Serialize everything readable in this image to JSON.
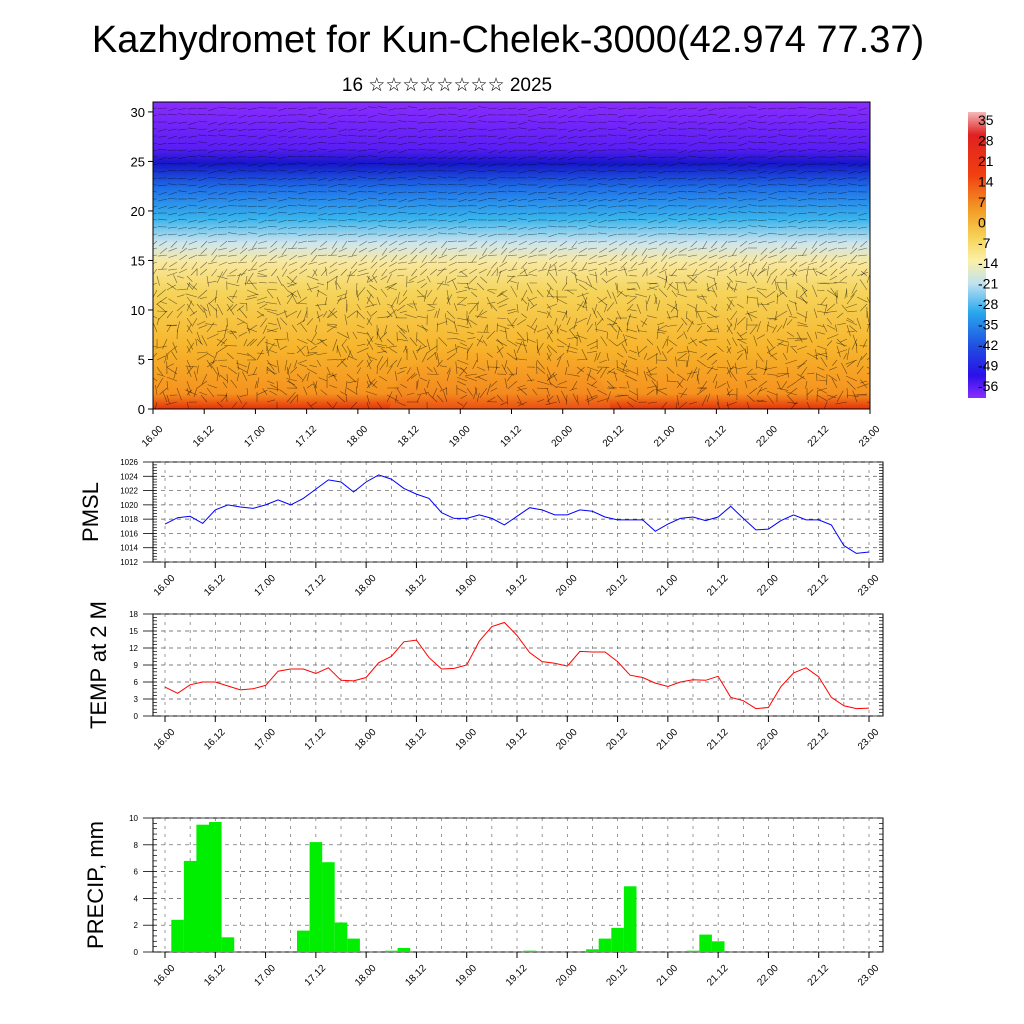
{
  "title": "Kazhydromet for Kun-Chelek-3000(42.974 77.37)",
  "subtitle": "16 ☆☆☆☆☆☆☆☆ 2025",
  "time_ticks": [
    "16.00",
    "16.12",
    "17.00",
    "17.12",
    "18.00",
    "18.12",
    "19.00",
    "19.12",
    "20.00",
    "20.12",
    "21.00",
    "21.12",
    "22.00",
    "22.12",
    "23.00"
  ],
  "colorbar_labels": [
    "35",
    "28",
    "21",
    "14",
    "7",
    "0",
    "-7",
    "-14",
    "-21",
    "-28",
    "-35",
    "-42",
    "-49",
    "-56"
  ],
  "chart_data": [
    {
      "type": "heatmap",
      "name_in_image": "",
      "y_ticks": [
        "0",
        "5",
        "10",
        "15",
        "20",
        "25",
        "30"
      ],
      "ylim": [
        0,
        31
      ],
      "xlim": [
        0,
        14
      ],
      "layers": [
        {
          "y_range": [
            25,
            31
          ],
          "approx_value": -56,
          "color": "#7a1cff"
        },
        {
          "y_range": [
            23,
            25
          ],
          "approx_value": -49,
          "color": "#2323e0"
        },
        {
          "y_range": [
            19,
            22
          ],
          "approx_value": -28,
          "color": "#2aa8ee"
        },
        {
          "y_range": [
            16,
            18
          ],
          "approx_value": -14,
          "color": "#bfe2f0"
        },
        {
          "y_range": [
            10,
            15
          ],
          "approx_value": -7,
          "color": "#f4d65a"
        },
        {
          "y_range": [
            0,
            5
          ],
          "approx_value": 0,
          "color": "#f59a28"
        }
      ],
      "note": "temperature-like shading with wind barbs"
    },
    {
      "type": "line",
      "ylabel": "PMSL",
      "ylim": [
        1012,
        1026
      ],
      "y_ticks": [
        "1012",
        "1014",
        "1016",
        "1018",
        "1020",
        "1022",
        "1024",
        "1026"
      ],
      "color": "#0000ff",
      "x_step_hours": 3,
      "values": [
        1017.3,
        1018.2,
        1018.4,
        1017.4,
        1019.3,
        1020.0,
        1019.7,
        1019.5,
        1020.0,
        1020.7,
        1020.0,
        1020.9,
        1022.2,
        1023.5,
        1023.2,
        1021.8,
        1023.2,
        1024.2,
        1023.6,
        1022.3,
        1021.5,
        1020.9,
        1018.9,
        1018.1,
        1018.1,
        1018.6,
        1018.1,
        1017.2,
        1018.4,
        1019.6,
        1019.3,
        1018.6,
        1018.6,
        1019.3,
        1019.1,
        1018.3,
        1017.9,
        1017.9,
        1017.9,
        1016.3,
        1017.3,
        1018.1,
        1018.3,
        1017.8,
        1018.3,
        1019.8,
        1018.1,
        1016.5,
        1016.6,
        1017.8,
        1018.6,
        1017.9,
        1017.9,
        1017.2,
        1014.3,
        1013.2,
        1013.4
      ]
    },
    {
      "type": "line",
      "ylabel": "TEMP at 2 M",
      "ylim": [
        0,
        18
      ],
      "y_ticks": [
        "0",
        "3",
        "6",
        "9",
        "12",
        "15",
        "18"
      ],
      "color": "#ff0000",
      "x_step_hours": 3,
      "values": [
        5.1,
        4.0,
        5.5,
        6.0,
        6.0,
        5.3,
        4.6,
        4.8,
        5.4,
        7.9,
        8.3,
        8.3,
        7.5,
        8.5,
        6.3,
        6.2,
        6.8,
        9.4,
        10.5,
        13.1,
        13.4,
        10.3,
        8.3,
        8.4,
        9.0,
        13.2,
        15.8,
        16.5,
        14.2,
        11.2,
        9.6,
        9.3,
        8.8,
        11.4,
        11.3,
        11.3,
        9.6,
        7.2,
        6.8,
        5.8,
        5.2,
        6.0,
        6.4,
        6.3,
        7.0,
        3.3,
        2.7,
        1.3,
        1.5,
        5.2,
        7.6,
        8.5,
        6.9,
        3.3,
        1.8,
        1.3,
        1.4
      ]
    },
    {
      "type": "bar",
      "ylabel": "PRECIP, mm",
      "ylim": [
        0,
        10
      ],
      "y_ticks": [
        "0",
        "2",
        "4",
        "6",
        "8",
        "10"
      ],
      "color": "#00ee00",
      "x_step_hours": 3,
      "values": [
        0,
        2.4,
        6.8,
        9.5,
        9.7,
        1.1,
        0,
        0,
        0,
        0,
        0,
        1.6,
        8.2,
        6.7,
        2.2,
        1.0,
        0,
        0,
        0.1,
        0.3,
        0,
        0,
        0,
        0,
        0,
        0,
        0,
        0,
        0,
        0.1,
        0,
        0,
        0,
        0,
        0.2,
        1.0,
        1.8,
        4.9,
        0,
        0,
        0,
        0,
        0.1,
        1.3,
        0.8,
        0,
        0,
        0,
        0,
        0,
        0,
        0,
        0,
        0,
        0,
        0
      ]
    }
  ]
}
